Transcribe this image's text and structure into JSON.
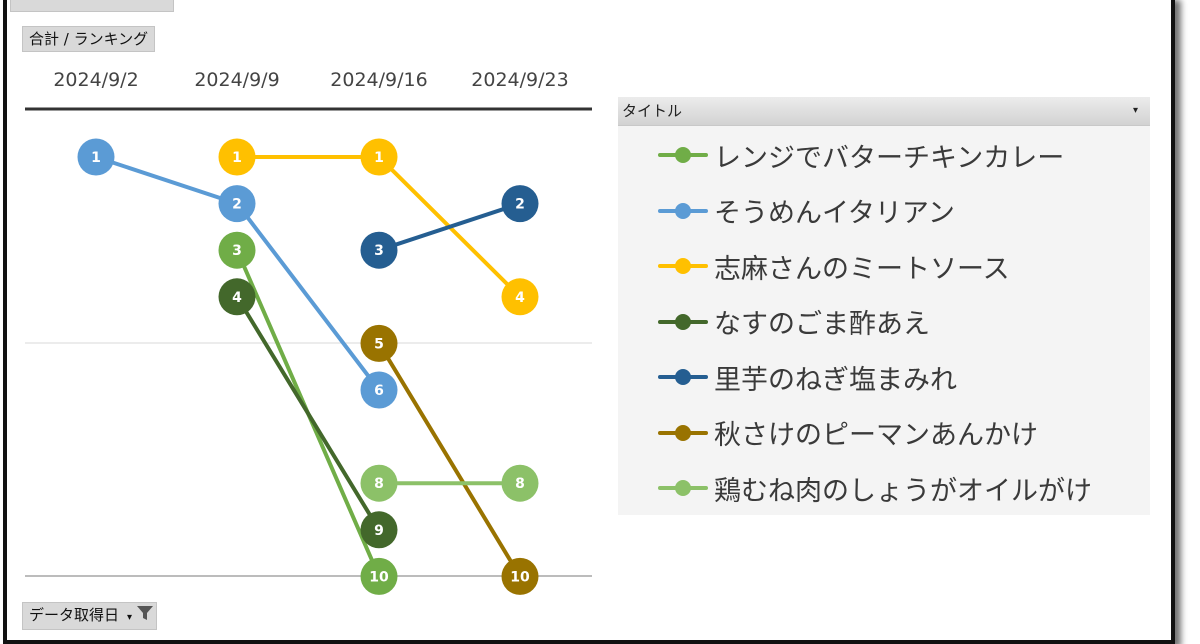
{
  "header": {
    "top_field_label": "",
    "sum_field_label": "合計 / ランキング",
    "legend_field_label": "タイトル",
    "bottom_field_label": "データ取得日",
    "dropdown_glyph": "▾"
  },
  "chart_data": {
    "type": "line",
    "title": "",
    "xlabel": "",
    "ylabel": "",
    "y_reversed": true,
    "ylim": [
      1,
      10
    ],
    "categories": [
      "2024/9/2",
      "2024/9/9",
      "2024/9/16",
      "2024/9/23"
    ],
    "legend_position": "right",
    "series": [
      {
        "name": "レンジでバターチキンカレー",
        "color": "#70ad47",
        "values": [
          null,
          3,
          10,
          null
        ]
      },
      {
        "name": "そうめんイタリアン",
        "color": "#5b9bd5",
        "values": [
          1,
          2,
          6,
          null
        ]
      },
      {
        "name": "志麻さんのミートソース",
        "color": "#ffc000",
        "values": [
          null,
          1,
          1,
          4
        ]
      },
      {
        "name": "なすのごま酢あえ",
        "color": "#43682b",
        "values": [
          null,
          4,
          9,
          null
        ]
      },
      {
        "name": "里芋のねぎ塩まみれ",
        "color": "#255e91",
        "values": [
          null,
          null,
          3,
          2
        ]
      },
      {
        "name": "秋さけのピーマンあんかけ",
        "color": "#997300",
        "values": [
          null,
          null,
          5,
          10
        ]
      },
      {
        "name": "鶏むね肉のしょうがオイルがけ",
        "color": "#8cc168",
        "values": [
          null,
          null,
          8,
          8
        ]
      }
    ]
  }
}
